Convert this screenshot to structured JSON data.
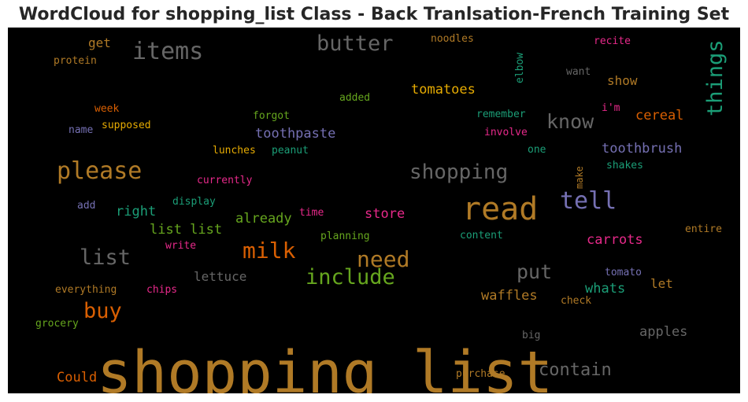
{
  "title": "WordCloud for shopping_list Class - Back Tranlsation-French Training Set",
  "chart_data": {
    "type": "wordcloud",
    "background": "#000000",
    "words": [
      {
        "text": "shopping list",
        "color": "#b07a26",
        "weight": 100
      },
      {
        "text": "read",
        "color": "#b07a26",
        "weight": 60
      },
      {
        "text": "please",
        "color": "#b07a26",
        "weight": 45
      },
      {
        "text": "tell",
        "color": "#7570b3",
        "weight": 45
      },
      {
        "text": "items",
        "color": "#666666",
        "weight": 45
      },
      {
        "text": "butter",
        "color": "#666666",
        "weight": 42
      },
      {
        "text": "things",
        "color": "#1b9e77",
        "weight": 40
      },
      {
        "text": "shopping",
        "color": "#666666",
        "weight": 40
      },
      {
        "text": "milk",
        "color": "#d95f02",
        "weight": 42
      },
      {
        "text": "need",
        "color": "#b07a26",
        "weight": 42
      },
      {
        "text": "include",
        "color": "#66a61e",
        "weight": 42
      },
      {
        "text": "list",
        "color": "#666666",
        "weight": 40
      },
      {
        "text": "know",
        "color": "#666666",
        "weight": 38
      },
      {
        "text": "put",
        "color": "#666666",
        "weight": 38
      },
      {
        "text": "buy",
        "color": "#d95f02",
        "weight": 40
      },
      {
        "text": "contain",
        "color": "#666666",
        "weight": 34
      },
      {
        "text": "tomatoes",
        "color": "#e6ab02",
        "weight": 28
      },
      {
        "text": "toothpaste",
        "color": "#7570b3",
        "weight": 28
      },
      {
        "text": "toothbrush",
        "color": "#7570b3",
        "weight": 27
      },
      {
        "text": "cereal",
        "color": "#d95f02",
        "weight": 27
      },
      {
        "text": "carrots",
        "color": "#e7298a",
        "weight": 27
      },
      {
        "text": "already",
        "color": "#66a61e",
        "weight": 27
      },
      {
        "text": "store",
        "color": "#e7298a",
        "weight": 26
      },
      {
        "text": "right",
        "color": "#1b9e77",
        "weight": 26
      },
      {
        "text": "list list",
        "color": "#66a61e",
        "weight": 26
      },
      {
        "text": "waffles",
        "color": "#b07a26",
        "weight": 26
      },
      {
        "text": "whats",
        "color": "#1b9e77",
        "weight": 26
      },
      {
        "text": "apples",
        "color": "#666666",
        "weight": 26
      },
      {
        "text": "Could",
        "color": "#d95f02",
        "weight": 26
      },
      {
        "text": "lettuce",
        "color": "#666666",
        "weight": 24
      },
      {
        "text": "show",
        "color": "#b07a26",
        "weight": 24
      },
      {
        "text": "let",
        "color": "#b07a26",
        "weight": 24
      },
      {
        "text": "get",
        "color": "#b07a26",
        "weight": 24
      },
      {
        "text": "noodles",
        "color": "#b07a26",
        "weight": 20
      },
      {
        "text": "recite",
        "color": "#e7298a",
        "weight": 20
      },
      {
        "text": "protein",
        "color": "#b07a26",
        "weight": 20
      },
      {
        "text": "elbow",
        "color": "#1b9e77",
        "weight": 20
      },
      {
        "text": "want",
        "color": "#666666",
        "weight": 20
      },
      {
        "text": "added",
        "color": "#66a61e",
        "weight": 20
      },
      {
        "text": "week",
        "color": "#d95f02",
        "weight": 20
      },
      {
        "text": "forgot",
        "color": "#66a61e",
        "weight": 20
      },
      {
        "text": "remember",
        "color": "#1b9e77",
        "weight": 20
      },
      {
        "text": "i'm",
        "color": "#e7298a",
        "weight": 20
      },
      {
        "text": "name",
        "color": "#7570b3",
        "weight": 20
      },
      {
        "text": "supposed",
        "color": "#e6ab02",
        "weight": 20
      },
      {
        "text": "involve",
        "color": "#e7298a",
        "weight": 20
      },
      {
        "text": "lunches",
        "color": "#e6ab02",
        "weight": 20
      },
      {
        "text": "peanut",
        "color": "#1b9e77",
        "weight": 20
      },
      {
        "text": "one",
        "color": "#1b9e77",
        "weight": 20
      },
      {
        "text": "make",
        "color": "#b07a26",
        "weight": 18
      },
      {
        "text": "shakes",
        "color": "#1b9e77",
        "weight": 20
      },
      {
        "text": "currently",
        "color": "#e7298a",
        "weight": 20
      },
      {
        "text": "add",
        "color": "#7570b3",
        "weight": 20
      },
      {
        "text": "display",
        "color": "#1b9e77",
        "weight": 20
      },
      {
        "text": "time",
        "color": "#e7298a",
        "weight": 20
      },
      {
        "text": "entire",
        "color": "#b07a26",
        "weight": 20
      },
      {
        "text": "planning",
        "color": "#66a61e",
        "weight": 20
      },
      {
        "text": "content",
        "color": "#1b9e77",
        "weight": 20
      },
      {
        "text": "write",
        "color": "#e7298a",
        "weight": 20
      },
      {
        "text": "tomato",
        "color": "#7570b3",
        "weight": 20
      },
      {
        "text": "everything",
        "color": "#b07a26",
        "weight": 20
      },
      {
        "text": "chips",
        "color": "#e7298a",
        "weight": 20
      },
      {
        "text": "check",
        "color": "#b07a26",
        "weight": 20
      },
      {
        "text": "grocery",
        "color": "#66a61e",
        "weight": 20
      },
      {
        "text": "big",
        "color": "#666666",
        "weight": 20
      },
      {
        "text": "purchase",
        "color": "#b07a26",
        "weight": 20
      }
    ]
  }
}
